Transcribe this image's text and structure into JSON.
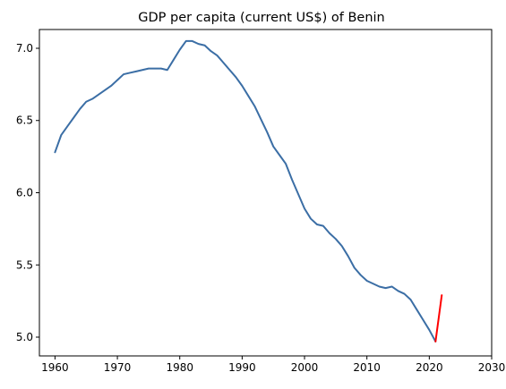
{
  "chart_data": {
    "type": "line",
    "title": "GDP per capita (current US$) of Benin",
    "xlabel": "",
    "ylabel": "",
    "xlim": [
      1957.5,
      2030
    ],
    "ylim": [
      4.87,
      7.13
    ],
    "xticks": [
      1960,
      1970,
      1980,
      1990,
      2000,
      2010,
      2020,
      2030
    ],
    "xtick_labels": [
      "1960",
      "1970",
      "1980",
      "1990",
      "2000",
      "2010",
      "2020",
      "2030"
    ],
    "yticks": [
      5.0,
      5.5,
      6.0,
      6.5,
      7.0
    ],
    "ytick_labels": [
      "5.0",
      "5.5",
      "6.0",
      "6.5",
      "7.0"
    ],
    "grid": false,
    "series": [
      {
        "color": "#3b6ea5",
        "x": [
          1960,
          1961,
          1962,
          1963,
          1964,
          1965,
          1966,
          1967,
          1968,
          1969,
          1970,
          1971,
          1972,
          1973,
          1974,
          1975,
          1976,
          1977,
          1978,
          1979,
          1980,
          1981,
          1982,
          1983,
          1984,
          1985,
          1986,
          1987,
          1988,
          1989,
          1990,
          1991,
          1992,
          1993,
          1994,
          1995,
          1996,
          1997,
          1998,
          1999,
          2000,
          2001,
          2002,
          2003,
          2004,
          2005,
          2006,
          2007,
          2008,
          2009,
          2010,
          2011,
          2012,
          2013,
          2014,
          2015,
          2016,
          2017,
          2018,
          2019,
          2020,
          2021
        ],
        "y": [
          6.28,
          6.4,
          6.46,
          6.52,
          6.58,
          6.63,
          6.65,
          6.68,
          6.71,
          6.74,
          6.78,
          6.82,
          6.83,
          6.84,
          6.85,
          6.86,
          6.86,
          6.86,
          6.85,
          6.92,
          6.99,
          7.05,
          7.05,
          7.03,
          7.02,
          6.98,
          6.95,
          6.9,
          6.85,
          6.8,
          6.74,
          6.67,
          6.6,
          6.51,
          6.42,
          6.32,
          6.26,
          6.2,
          6.09,
          5.99,
          5.89,
          5.82,
          5.78,
          5.77,
          5.72,
          5.68,
          5.63,
          5.56,
          5.48,
          5.43,
          5.39,
          5.37,
          5.35,
          5.34,
          5.35,
          5.32,
          5.3,
          5.26,
          5.19,
          5.12,
          5.05,
          4.97
        ]
      },
      {
        "color": "#ff0000",
        "x": [
          2021,
          2022
        ],
        "y": [
          4.97,
          5.29
        ]
      }
    ]
  }
}
